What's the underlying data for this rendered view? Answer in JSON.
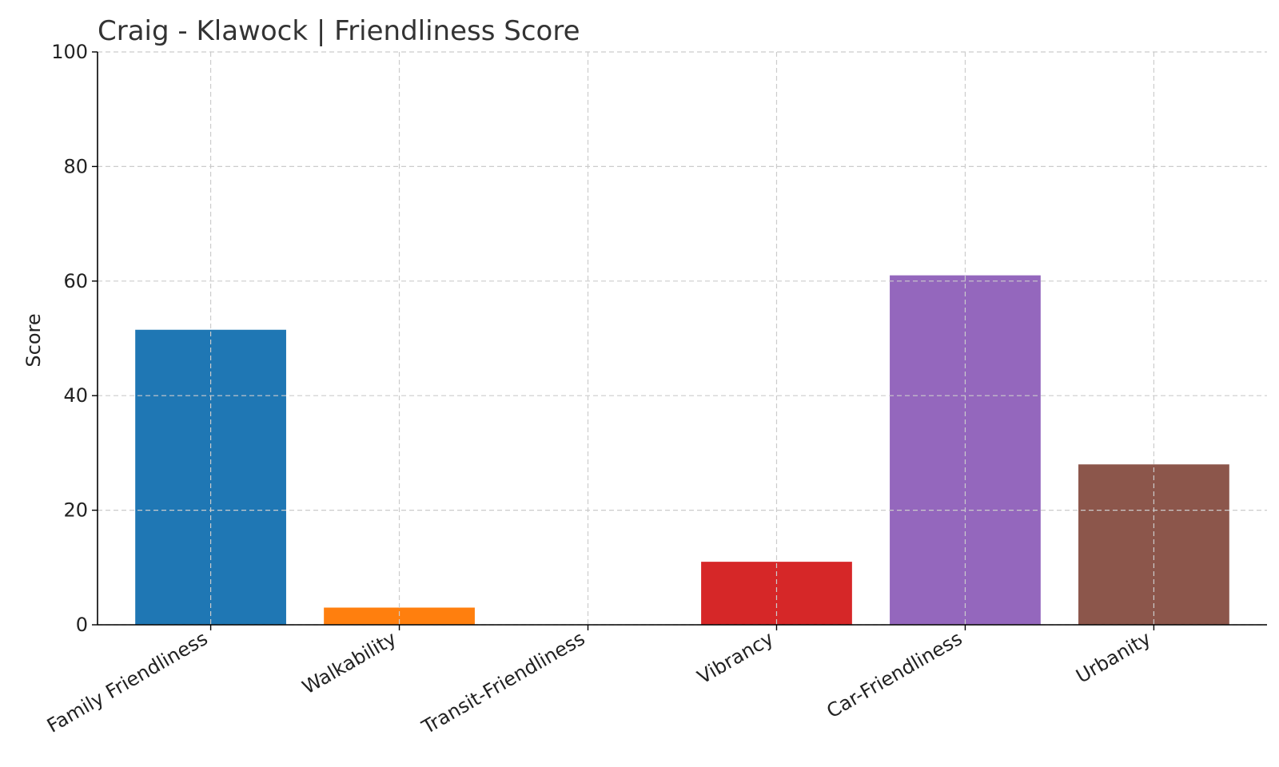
{
  "chart_data": {
    "type": "bar",
    "title": "Craig - Klawock | Friendliness Score",
    "xlabel": "",
    "ylabel": "Score",
    "ylim": [
      0,
      100
    ],
    "yticks": [
      0,
      20,
      40,
      60,
      80,
      100
    ],
    "grid": true,
    "categories": [
      "Family Friendliness",
      "Walkability",
      "Transit-Friendliness",
      "Vibrancy",
      "Car-Friendliness",
      "Urbanity"
    ],
    "values": [
      51.5,
      3,
      0,
      11,
      61,
      28
    ],
    "colors": [
      "#1f77b4",
      "#ff7f0e",
      "#2ca02c",
      "#d62728",
      "#9467bd",
      "#8c564b"
    ]
  }
}
